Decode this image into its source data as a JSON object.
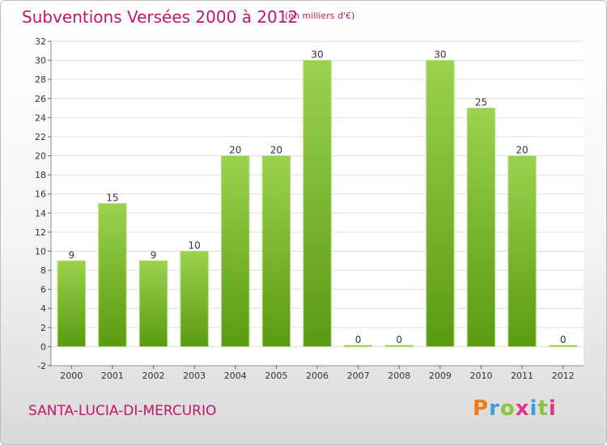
{
  "header": {
    "title": "Subventions Versées 2000 à 2012",
    "unit": "(en milliers d'€)"
  },
  "footer": {
    "place": "SANTA-LUCIA-DI-MERCURIO",
    "logo": "Proxiti",
    "logo_colors": [
      "#f07b1f",
      "#3f9fd8",
      "#8bc43f",
      "#e2338d",
      "#3f9fd8",
      "#8bc43f",
      "#e2338d"
    ]
  },
  "colors": {
    "title": "#c4146e",
    "bar_light": "#9bd24f",
    "bar_dark": "#5a9a12",
    "grid": "#dddddd"
  },
  "chart_data": {
    "type": "bar",
    "title": "Subventions Versées 2000 à 2012",
    "subtitle": "(en milliers d'€)",
    "xlabel": "",
    "ylabel": "",
    "categories": [
      "2000",
      "2001",
      "2002",
      "2003",
      "2004",
      "2005",
      "2006",
      "2007",
      "2008",
      "2009",
      "2010",
      "2011",
      "2012"
    ],
    "values": [
      9,
      15,
      9,
      10,
      20,
      20,
      30,
      0,
      0,
      30,
      25,
      20,
      0
    ],
    "data_labels": [
      "9",
      "15",
      "9",
      "10",
      "20",
      "20",
      "30",
      "0",
      "0",
      "30",
      "25",
      "20",
      "0"
    ],
    "ylim": [
      -2,
      32
    ],
    "yticks": [
      -2,
      0,
      2,
      4,
      6,
      8,
      10,
      12,
      14,
      16,
      18,
      20,
      22,
      24,
      26,
      28,
      30,
      32
    ],
    "grid": true,
    "legend": "none"
  }
}
